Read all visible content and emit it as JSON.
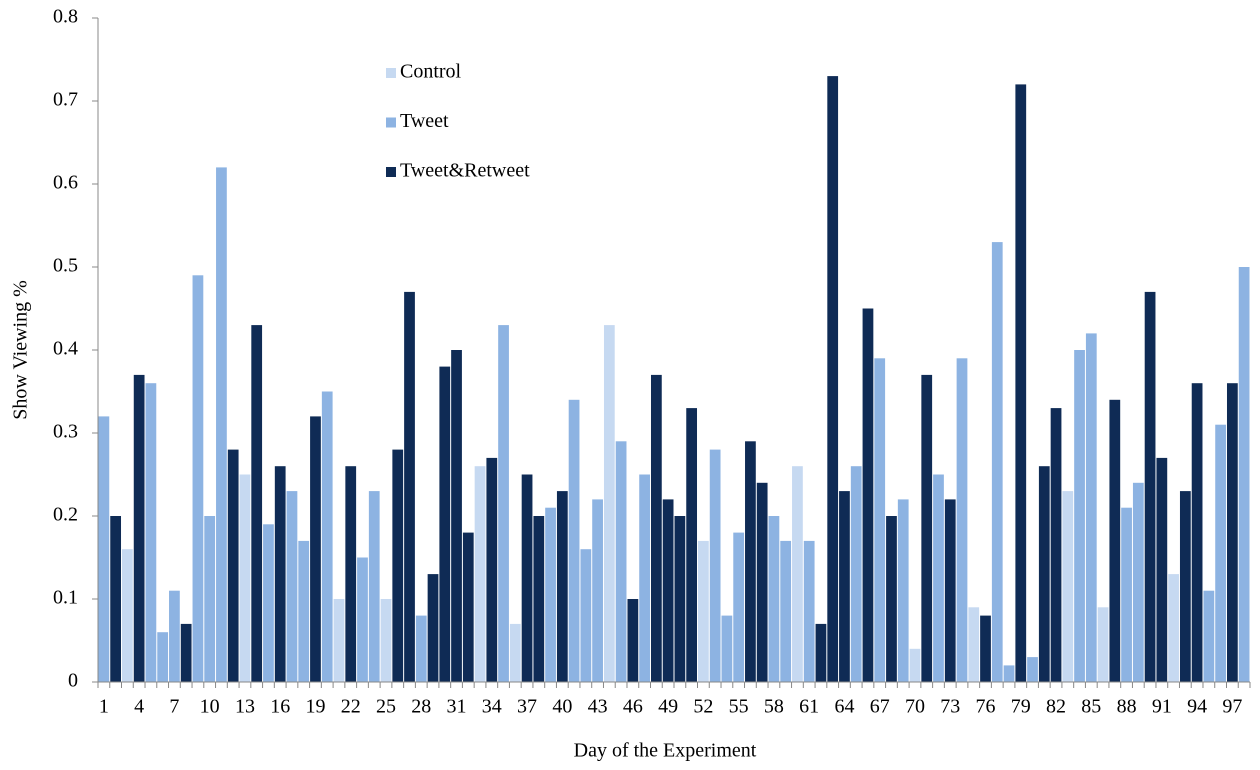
{
  "chart_data": {
    "type": "bar",
    "x_label": "Day of the Experiment",
    "y_label": "Show Viewing %",
    "categories": [
      1,
      null,
      null,
      4,
      null,
      null,
      7,
      null,
      null,
      10,
      null,
      null,
      13,
      null,
      null,
      16,
      null,
      null,
      19,
      null,
      null,
      22,
      null,
      null,
      25,
      null,
      null,
      28,
      null,
      null,
      31,
      null,
      null,
      34,
      null,
      null,
      37,
      null,
      null,
      40,
      null,
      null,
      43,
      null,
      null,
      46,
      null,
      null,
      49,
      null,
      null,
      52,
      null,
      null,
      55,
      null,
      null,
      58,
      null,
      null,
      61,
      null,
      null,
      64,
      null,
      null,
      67,
      null,
      null,
      70,
      null,
      null,
      73,
      null,
      null,
      76,
      null,
      null,
      79,
      null,
      null,
      82,
      null,
      null,
      85,
      null,
      null,
      88,
      null,
      null,
      91,
      null,
      null,
      94,
      null,
      null,
      97,
      null
    ],
    "series": [
      {
        "name": "Control",
        "color": "#c6d9f1",
        "values": [
          null,
          null,
          0.16,
          null,
          null,
          null,
          null,
          null,
          null,
          null,
          null,
          null,
          0.25,
          null,
          null,
          null,
          null,
          null,
          null,
          null,
          0.1,
          null,
          null,
          null,
          0.1,
          null,
          null,
          null,
          null,
          null,
          null,
          null,
          0.26,
          null,
          null,
          0.07,
          null,
          null,
          null,
          null,
          null,
          null,
          null,
          0.43,
          null,
          null,
          null,
          null,
          null,
          null,
          null,
          0.17,
          null,
          null,
          null,
          null,
          null,
          null,
          null,
          0.26,
          null,
          null,
          null,
          null,
          null,
          null,
          null,
          null,
          null,
          0.04,
          null,
          null,
          null,
          null,
          0.09,
          null,
          null,
          null,
          null,
          null,
          null,
          null,
          0.23,
          null,
          null,
          0.09,
          null,
          null,
          null,
          null,
          null,
          0.13,
          null,
          null,
          null,
          null,
          null,
          null
        ]
      },
      {
        "name": "Tweet",
        "color": "#8db3e2",
        "values": [
          0.32,
          null,
          null,
          null,
          0.36,
          0.06,
          0.11,
          null,
          0.49,
          0.2,
          0.62,
          null,
          null,
          null,
          0.19,
          null,
          0.23,
          0.17,
          null,
          0.35,
          null,
          null,
          0.15,
          0.23,
          null,
          null,
          null,
          0.08,
          null,
          null,
          null,
          null,
          null,
          null,
          0.43,
          null,
          null,
          null,
          0.21,
          null,
          0.34,
          0.16,
          0.22,
          null,
          0.29,
          null,
          0.25,
          null,
          null,
          null,
          null,
          null,
          0.28,
          0.08,
          0.18,
          null,
          null,
          0.2,
          0.17,
          null,
          0.17,
          null,
          null,
          null,
          0.26,
          null,
          0.39,
          null,
          0.22,
          null,
          null,
          0.25,
          null,
          0.39,
          null,
          null,
          0.53,
          0.02,
          null,
          0.03,
          null,
          null,
          null,
          0.4,
          0.42,
          null,
          null,
          0.21,
          0.24,
          null,
          null,
          null,
          null,
          null,
          0.11,
          0.31,
          null,
          0.5
        ]
      },
      {
        "name": "Tweet&Retweet",
        "color": "#0f2b55",
        "values": [
          null,
          0.2,
          null,
          0.37,
          null,
          null,
          null,
          0.07,
          null,
          null,
          null,
          0.28,
          null,
          0.43,
          null,
          0.26,
          null,
          null,
          0.32,
          null,
          null,
          0.26,
          null,
          null,
          null,
          0.28,
          0.47,
          null,
          0.13,
          0.38,
          0.4,
          0.18,
          null,
          0.27,
          null,
          null,
          0.25,
          0.2,
          null,
          0.23,
          null,
          null,
          null,
          null,
          null,
          0.1,
          null,
          0.37,
          0.22,
          0.2,
          0.33,
          null,
          null,
          null,
          null,
          0.29,
          0.24,
          null,
          null,
          null,
          null,
          0.07,
          0.73,
          0.23,
          null,
          0.45,
          null,
          0.2,
          null,
          null,
          0.37,
          null,
          0.22,
          null,
          null,
          0.08,
          null,
          null,
          0.72,
          null,
          0.26,
          0.33,
          null,
          null,
          null,
          null,
          0.34,
          null,
          null,
          0.47,
          0.27,
          null,
          0.23,
          0.36,
          null,
          null,
          0.36,
          null
        ]
      }
    ],
    "ylim": [
      0,
      0.8
    ],
    "yticks": [
      0,
      0.1,
      0.2,
      0.3,
      0.4,
      0.5,
      0.6,
      0.7,
      0.8
    ],
    "grid": false,
    "legend_position": "upper-left"
  }
}
